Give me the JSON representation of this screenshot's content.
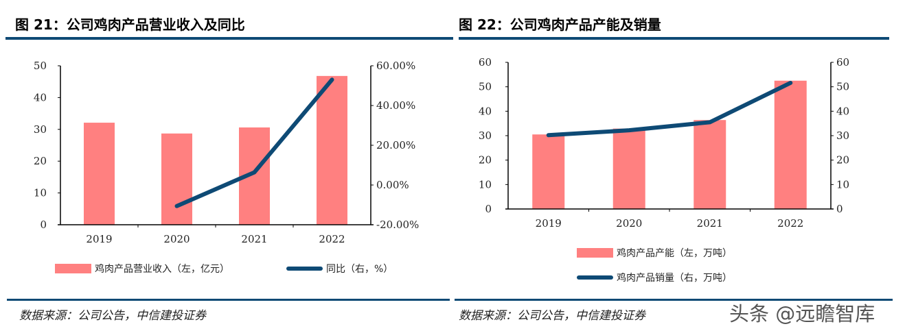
{
  "colors": {
    "bar": "#ff8080",
    "line": "#0e4a75",
    "rule": "#0e4a75"
  },
  "watermark": "头条 @远瞻智库",
  "chart_data": [
    {
      "type": "bar+line",
      "title": "图 21：公司鸡肉产品营业收入及同比",
      "source": "数据来源：公司公告，中信建投证券",
      "categories": [
        "2019",
        "2020",
        "2021",
        "2022"
      ],
      "series": [
        {
          "name": "鸡肉产品营业收入（左，亿元）",
          "type": "bar",
          "axis": "left",
          "values": [
            32.1,
            28.7,
            30.6,
            46.8
          ]
        },
        {
          "name": "同比（右，%）",
          "type": "line",
          "axis": "right",
          "values": [
            null,
            -10.6,
            6.4,
            53.0
          ]
        }
      ],
      "left_axis": {
        "range": [
          0,
          50
        ],
        "ticks": [
          "0",
          "10",
          "20",
          "30",
          "40",
          "50"
        ]
      },
      "right_axis": {
        "range": [
          -20,
          60
        ],
        "ticks": [
          "-20.00%",
          "0.00%",
          "20.00%",
          "40.00%",
          "60.00%"
        ]
      },
      "legend": "bottom",
      "grid": false
    },
    {
      "type": "bar+line",
      "title": "图 22：公司鸡肉产品产能及销量",
      "source": "数据来源：公司公告，中信建投证券",
      "categories": [
        "2019",
        "2020",
        "2021",
        "2022"
      ],
      "series": [
        {
          "name": "鸡肉产品产能（左，万吨）",
          "type": "bar",
          "axis": "left",
          "values": [
            30.5,
            32.9,
            36.4,
            52.5
          ]
        },
        {
          "name": "鸡肉产品销量（右，万吨）",
          "type": "line",
          "axis": "right",
          "values": [
            30.2,
            32.2,
            35.5,
            51.6
          ]
        }
      ],
      "left_axis": {
        "range": [
          0,
          60
        ],
        "ticks": [
          "0",
          "10",
          "20",
          "30",
          "40",
          "50",
          "60"
        ]
      },
      "right_axis": {
        "range": [
          0,
          60
        ],
        "ticks": [
          "0",
          "10",
          "20",
          "30",
          "40",
          "50",
          "60"
        ]
      },
      "legend": "bottom",
      "grid": false
    }
  ]
}
